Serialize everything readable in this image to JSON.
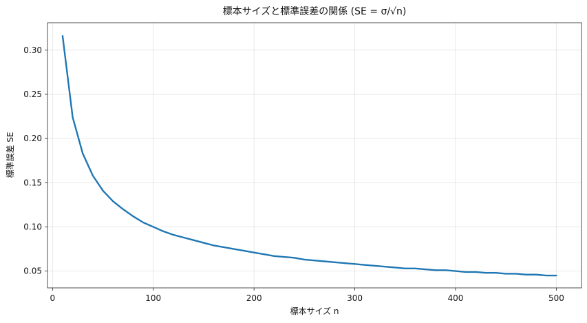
{
  "chart_data": {
    "type": "line",
    "title": "標本サイズと標準誤差の関係 (SE = σ/√n)",
    "xlabel": "標本サイズ n",
    "ylabel": "標準誤差 SE",
    "xlim": [
      -5,
      525
    ],
    "ylim": [
      0.031,
      0.331
    ],
    "x_ticks": [
      0,
      100,
      200,
      300,
      400,
      500
    ],
    "y_ticks": [
      0.05,
      0.1,
      0.15,
      0.2,
      0.25,
      0.3
    ],
    "x_tick_labels": [
      "0",
      "100",
      "200",
      "300",
      "400",
      "500"
    ],
    "y_tick_labels": [
      "0.05",
      "0.10",
      "0.15",
      "0.20",
      "0.25",
      "0.30"
    ],
    "grid": true,
    "series": [
      {
        "color": "#1f77b4",
        "x": [
          10,
          20,
          30,
          40,
          50,
          60,
          70,
          80,
          90,
          100,
          110,
          120,
          130,
          140,
          150,
          160,
          170,
          180,
          190,
          200,
          210,
          220,
          230,
          240,
          250,
          260,
          270,
          280,
          290,
          300,
          310,
          320,
          330,
          340,
          350,
          360,
          370,
          380,
          390,
          400,
          410,
          420,
          430,
          440,
          450,
          460,
          470,
          480,
          490,
          500
        ],
        "values": [
          0.316,
          0.224,
          0.183,
          0.158,
          0.141,
          0.129,
          0.12,
          0.112,
          0.105,
          0.1,
          0.095,
          0.091,
          0.088,
          0.085,
          0.082,
          0.079,
          0.077,
          0.075,
          0.073,
          0.071,
          0.069,
          0.067,
          0.066,
          0.065,
          0.063,
          0.062,
          0.061,
          0.06,
          0.059,
          0.058,
          0.057,
          0.056,
          0.055,
          0.054,
          0.053,
          0.053,
          0.052,
          0.051,
          0.051,
          0.05,
          0.049,
          0.049,
          0.048,
          0.048,
          0.047,
          0.047,
          0.046,
          0.046,
          0.045,
          0.045
        ]
      }
    ]
  }
}
